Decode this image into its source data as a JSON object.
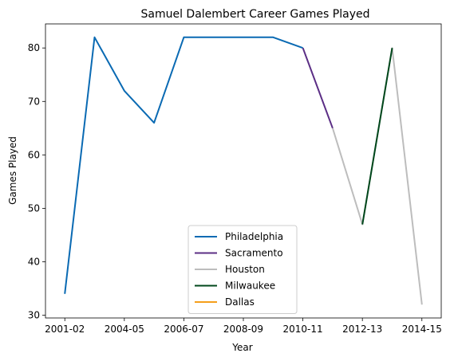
{
  "chart_data": {
    "type": "line",
    "title": "Samuel Dalembert Career Games Played",
    "xlabel": "Year",
    "ylabel": "Games Played",
    "ylim": [
      29.5,
      84.5
    ],
    "yticks": [
      30,
      40,
      50,
      60,
      70,
      80
    ],
    "x_tick_labels": [
      "2001-02",
      "2004-05",
      "2006-07",
      "2008-09",
      "2010-11",
      "2012-13",
      "2014-15"
    ],
    "x_tick_positions": [
      0,
      2,
      4,
      6,
      8,
      10,
      12
    ],
    "xlim": [
      -0.65,
      12.65
    ],
    "legend_position": "lower-center",
    "series": [
      {
        "name": "Philadelphia",
        "color": "#0a6ab3",
        "points": [
          [
            0,
            34
          ],
          [
            1,
            82
          ],
          [
            2,
            72
          ],
          [
            3,
            66
          ],
          [
            4,
            82
          ],
          [
            5,
            82
          ],
          [
            6,
            82
          ],
          [
            7,
            82
          ],
          [
            8,
            80
          ]
        ]
      },
      {
        "name": "Sacramento",
        "color": "#5b2e85",
        "points": [
          [
            8,
            80
          ],
          [
            9,
            65
          ]
        ]
      },
      {
        "name": "Houston",
        "color": "#bdbdbd",
        "points": [
          [
            9,
            65
          ],
          [
            10,
            47
          ],
          [
            11,
            80
          ],
          [
            12,
            32
          ]
        ]
      },
      {
        "name": "Milwaukee",
        "color": "#00471b",
        "points": [
          [
            10,
            47
          ],
          [
            11,
            80
          ]
        ]
      },
      {
        "name": "Dallas",
        "color": "#f59e1a",
        "points": []
      }
    ]
  }
}
